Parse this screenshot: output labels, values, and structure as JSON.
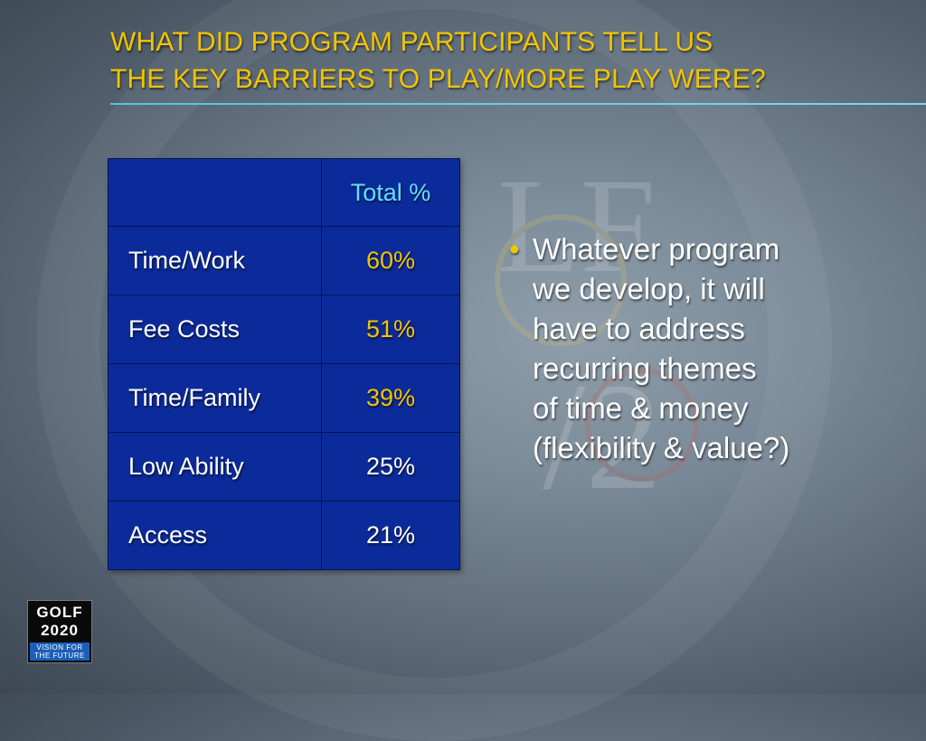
{
  "slide": {
    "title_line1": "WHAT DID PROGRAM PARTICIPANTS TELL US",
    "title_line2": "THE KEY BARRIERS TO PLAY/MORE PLAY WERE?"
  },
  "table": {
    "corner": "",
    "header": "Total %",
    "rows": [
      {
        "label": "Time/Work",
        "value": "60%",
        "value_color": "#f2c400"
      },
      {
        "label": "Fee Costs",
        "value": "51%",
        "value_color": "#f2c400"
      },
      {
        "label": "Time/Family",
        "value": "39%",
        "value_color": "#f2c400"
      },
      {
        "label": "Low Ability",
        "value": "25%",
        "value_color": "#ffffff"
      },
      {
        "label": "Access",
        "value": "21%",
        "value_color": "#ffffff"
      }
    ]
  },
  "bullet": {
    "marker": "•",
    "text": "Whatever program\nwe develop, it will\nhave to address\nrecurring themes\nof time & money\n(flexibility & value?)"
  },
  "logo": {
    "line1": "GOLF",
    "line2": "2020",
    "tagline1": "VISION FOR",
    "tagline2": "THE FUTURE"
  },
  "colors": {
    "title": "#f2c400",
    "table_bg": "#0c2b9a",
    "header_text": "#5fe0ff",
    "rule": "#4fc6e0"
  }
}
